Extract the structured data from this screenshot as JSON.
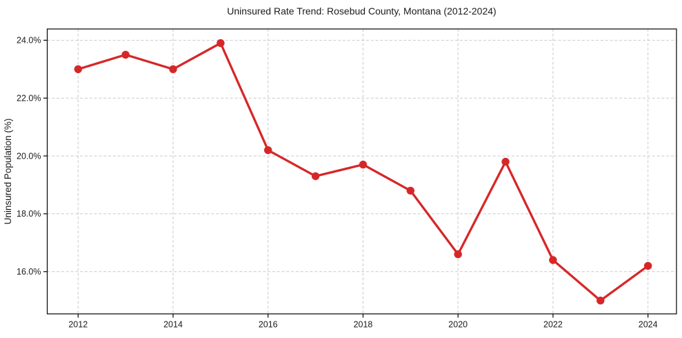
{
  "figure": {
    "title": "Uninsured Rate Trend: Rosebud County, Montana (2012-2024)"
  },
  "chart_data": {
    "type": "line",
    "title": "Uninsured Rate Trend: Rosebud County, Montana (2012-2024)",
    "xlabel": "",
    "ylabel": "Uninsured Population (%)",
    "x": [
      2012,
      2013,
      2014,
      2015,
      2016,
      2017,
      2018,
      2019,
      2020,
      2021,
      2022,
      2023,
      2024
    ],
    "series": [
      {
        "name": "Uninsured Population (%)",
        "values": [
          23.0,
          23.5,
          23.0,
          23.9,
          20.2,
          19.3,
          19.7,
          18.8,
          16.6,
          19.8,
          16.4,
          15.0,
          16.2
        ]
      }
    ],
    "xticks": [
      2012,
      2014,
      2016,
      2018,
      2020,
      2022,
      2024
    ],
    "ytick_values": [
      16,
      18,
      20,
      22,
      24
    ],
    "ytick_labels": [
      "16.0%",
      "18.0%",
      "20.0%",
      "22.0%",
      "24.0%"
    ],
    "xlim": [
      2011.35,
      2024.6
    ],
    "ylim": [
      14.54,
      24.39
    ],
    "grid": "major-both",
    "grid_style": "dashed",
    "legend_position": "none",
    "colors": {
      "line": "#d62728",
      "marker": "#d62728",
      "grid": "#c9c9c9",
      "spine": "#000000",
      "tick": "#000000",
      "text": "#1a1a1a",
      "background": "#ffffff"
    }
  }
}
